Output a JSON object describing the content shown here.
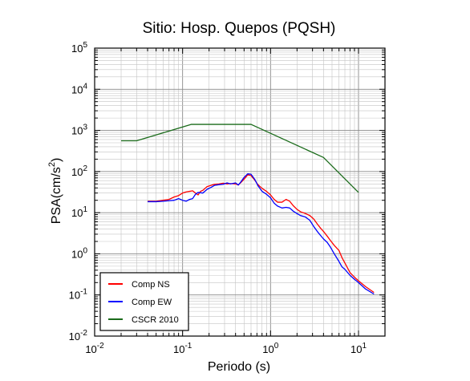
{
  "chart_data": {
    "type": "line",
    "title": "Sitio: Hosp. Quepos (PQSH)",
    "xlabel": "Periodo (s)",
    "ylabel_main": "PSA(cm/s",
    "ylabel_sup": "2",
    "ylabel_close": ")",
    "xscale": "log",
    "yscale": "log",
    "xlim": [
      0.01,
      20
    ],
    "ylim": [
      0.01,
      100000
    ],
    "grid": true,
    "legend_position": "bottom-left",
    "x_ticks": [
      {
        "value": 0.01,
        "base": "10",
        "exp": "-2"
      },
      {
        "value": 0.1,
        "base": "10",
        "exp": "-1"
      },
      {
        "value": 1,
        "base": "10",
        "exp": "0"
      },
      {
        "value": 10,
        "base": "10",
        "exp": "1"
      }
    ],
    "y_ticks": [
      {
        "value": 0.01,
        "base": "10",
        "exp": "-2"
      },
      {
        "value": 0.1,
        "base": "10",
        "exp": "-1"
      },
      {
        "value": 1,
        "base": "10",
        "exp": "0"
      },
      {
        "value": 10,
        "base": "10",
        "exp": "1"
      },
      {
        "value": 100,
        "base": "10",
        "exp": "2"
      },
      {
        "value": 1000,
        "base": "10",
        "exp": "3"
      },
      {
        "value": 10000,
        "base": "10",
        "exp": "4"
      },
      {
        "value": 100000,
        "base": "10",
        "exp": "5"
      }
    ],
    "series": [
      {
        "name": "Comp NS",
        "color": "#ff0000",
        "points": [
          [
            0.04,
            19
          ],
          [
            0.05,
            19
          ],
          [
            0.06,
            20
          ],
          [
            0.07,
            21
          ],
          [
            0.08,
            24
          ],
          [
            0.09,
            26
          ],
          [
            0.1,
            30
          ],
          [
            0.11,
            32
          ],
          [
            0.12,
            33
          ],
          [
            0.13,
            34
          ],
          [
            0.14,
            30
          ],
          [
            0.15,
            27
          ],
          [
            0.16,
            33
          ],
          [
            0.17,
            35
          ],
          [
            0.19,
            43
          ],
          [
            0.21,
            46
          ],
          [
            0.23,
            49
          ],
          [
            0.26,
            50
          ],
          [
            0.29,
            52
          ],
          [
            0.32,
            50
          ],
          [
            0.35,
            51
          ],
          [
            0.4,
            50
          ],
          [
            0.43,
            47
          ],
          [
            0.46,
            54
          ],
          [
            0.5,
            65
          ],
          [
            0.55,
            83
          ],
          [
            0.6,
            80
          ],
          [
            0.66,
            62
          ],
          [
            0.72,
            48
          ],
          [
            0.8,
            39
          ],
          [
            0.9,
            33
          ],
          [
            1.0,
            27
          ],
          [
            1.1,
            21
          ],
          [
            1.2,
            18
          ],
          [
            1.35,
            18
          ],
          [
            1.5,
            21
          ],
          [
            1.65,
            19
          ],
          [
            1.8,
            15
          ],
          [
            2.0,
            12
          ],
          [
            2.2,
            10.5
          ],
          [
            2.5,
            9.5
          ],
          [
            2.8,
            8.5
          ],
          [
            3.1,
            7
          ],
          [
            3.4,
            5.3
          ],
          [
            3.7,
            4.2
          ],
          [
            4.0,
            3.5
          ],
          [
            4.4,
            2.7
          ],
          [
            4.8,
            2.1
          ],
          [
            5.3,
            1.6
          ],
          [
            6.0,
            1.2
          ],
          [
            6.5,
            0.8
          ],
          [
            7.0,
            0.6
          ],
          [
            8.0,
            0.35
          ],
          [
            9.0,
            0.27
          ],
          [
            10.0,
            0.22
          ],
          [
            12.0,
            0.16
          ],
          [
            15.0,
            0.115
          ]
        ]
      },
      {
        "name": "Comp EW",
        "color": "#0000ff",
        "points": [
          [
            0.04,
            18.5
          ],
          [
            0.05,
            18.5
          ],
          [
            0.06,
            19
          ],
          [
            0.07,
            19.5
          ],
          [
            0.08,
            20
          ],
          [
            0.09,
            22
          ],
          [
            0.1,
            20
          ],
          [
            0.11,
            19
          ],
          [
            0.12,
            21
          ],
          [
            0.13,
            22
          ],
          [
            0.14,
            28
          ],
          [
            0.15,
            31
          ],
          [
            0.17,
            30
          ],
          [
            0.19,
            37
          ],
          [
            0.21,
            41
          ],
          [
            0.23,
            46
          ],
          [
            0.26,
            48
          ],
          [
            0.29,
            49
          ],
          [
            0.32,
            53
          ],
          [
            0.35,
            50
          ],
          [
            0.4,
            53
          ],
          [
            0.43,
            47
          ],
          [
            0.46,
            56
          ],
          [
            0.5,
            72
          ],
          [
            0.55,
            88
          ],
          [
            0.6,
            86
          ],
          [
            0.66,
            65
          ],
          [
            0.72,
            45
          ],
          [
            0.8,
            33
          ],
          [
            0.9,
            28
          ],
          [
            1.0,
            23
          ],
          [
            1.1,
            17
          ],
          [
            1.2,
            14.5
          ],
          [
            1.35,
            13
          ],
          [
            1.5,
            13.5
          ],
          [
            1.65,
            13
          ],
          [
            1.8,
            11
          ],
          [
            2.0,
            9.5
          ],
          [
            2.2,
            8.5
          ],
          [
            2.5,
            7.8
          ],
          [
            2.8,
            6.5
          ],
          [
            3.1,
            4.6
          ],
          [
            3.4,
            3.5
          ],
          [
            3.7,
            2.8
          ],
          [
            4.0,
            2.3
          ],
          [
            4.4,
            1.9
          ],
          [
            4.8,
            1.45
          ],
          [
            5.3,
            1.0
          ],
          [
            6.0,
            0.65
          ],
          [
            6.5,
            0.48
          ],
          [
            7.0,
            0.42
          ],
          [
            8.0,
            0.3
          ],
          [
            9.0,
            0.24
          ],
          [
            10.0,
            0.2
          ],
          [
            12.0,
            0.14
          ],
          [
            15.0,
            0.105
          ]
        ]
      },
      {
        "name": "CSCR 2010",
        "color": "#1a6b1a",
        "points": [
          [
            0.02,
            560
          ],
          [
            0.03,
            560
          ],
          [
            0.125,
            1400
          ],
          [
            0.6,
            1400
          ],
          [
            4.0,
            220
          ],
          [
            10.0,
            31
          ]
        ]
      }
    ]
  }
}
